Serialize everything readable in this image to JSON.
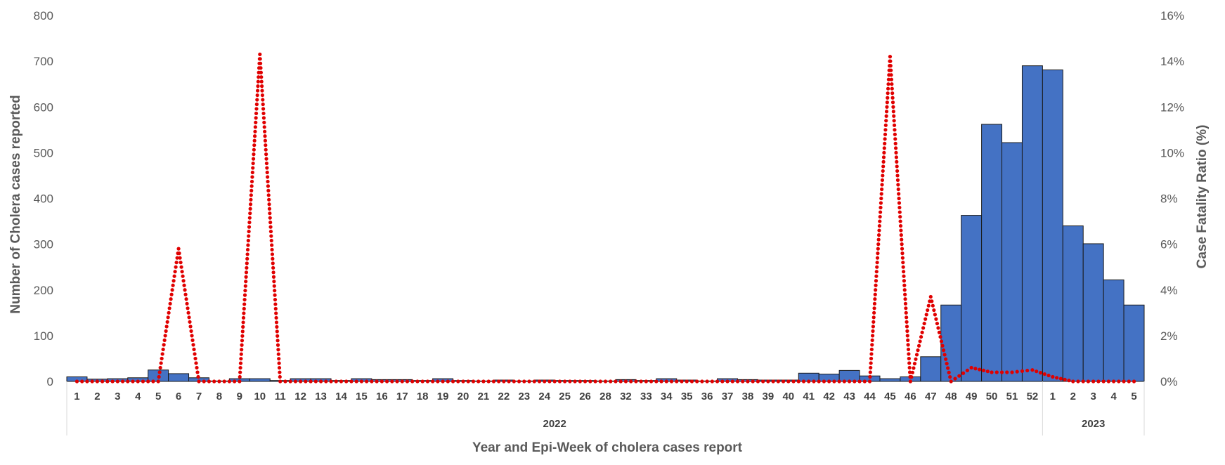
{
  "chart_data": {
    "type": "bar",
    "xlabel": "Year and Epi-Week of cholera cases report",
    "ylabel": "Number of Cholera cases reported",
    "y2label": "Case Fatality Ratio (%)",
    "ylim": [
      0,
      800
    ],
    "y2lim": [
      0,
      16
    ],
    "y_ticks": [
      "0",
      "100",
      "200",
      "300",
      "400",
      "500",
      "600",
      "700",
      "800"
    ],
    "y2_ticks": [
      "0%",
      "2%",
      "4%",
      "6%",
      "8%",
      "10%",
      "12%",
      "14%",
      "16%"
    ],
    "categories": [
      "1",
      "2",
      "3",
      "4",
      "5",
      "6",
      "7",
      "8",
      "9",
      "10",
      "11",
      "12",
      "13",
      "14",
      "15",
      "16",
      "17",
      "18",
      "19",
      "20",
      "21",
      "22",
      "23",
      "24",
      "25",
      "26",
      "28",
      "32",
      "33",
      "34",
      "35",
      "36",
      "37",
      "38",
      "39",
      "40",
      "41",
      "42",
      "43",
      "44",
      "45",
      "46",
      "47",
      "48",
      "49",
      "50",
      "51",
      "52",
      "1",
      "2",
      "3",
      "4",
      "5"
    ],
    "year_groups": [
      {
        "label": "2022",
        "count": 48
      },
      {
        "label": "2023",
        "count": 5
      }
    ],
    "series": [
      {
        "kind": "bar",
        "axis": "left",
        "color": "#4472C4",
        "values": [
          10,
          5,
          6,
          8,
          25,
          17,
          8,
          1,
          6,
          6,
          2,
          6,
          6,
          2,
          6,
          4,
          4,
          2,
          6,
          2,
          1,
          3,
          1,
          3,
          2,
          2,
          1,
          4,
          2,
          6,
          3,
          1,
          6,
          4,
          3,
          3,
          18,
          16,
          24,
          12,
          6,
          10,
          54,
          167,
          363,
          562,
          522,
          690,
          681,
          340,
          301,
          222,
          167
        ]
      },
      {
        "kind": "line",
        "style": "dotted",
        "axis": "right",
        "color": "#E00000",
        "values": [
          0,
          0,
          0,
          0,
          0,
          5.8,
          0,
          0,
          0,
          14.3,
          0,
          0,
          0,
          0,
          0,
          0,
          0,
          0,
          0,
          0,
          0,
          0,
          0,
          0,
          0,
          0,
          0,
          0,
          0,
          0,
          0,
          0,
          0,
          0,
          0,
          0,
          0,
          0,
          0,
          0,
          14.2,
          0,
          3.7,
          0,
          0.6,
          0.4,
          0.4,
          0.5,
          0.2,
          0,
          0,
          0,
          0
        ]
      }
    ]
  }
}
